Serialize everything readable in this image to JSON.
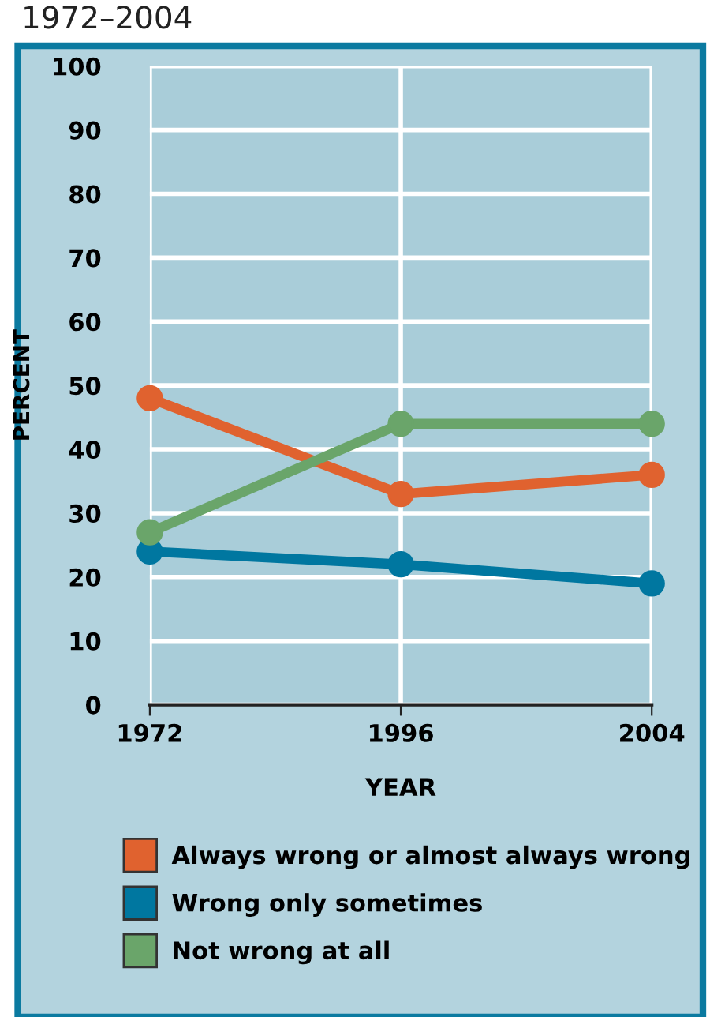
{
  "chart_data": {
    "type": "line",
    "title": "1972–2004",
    "xlabel": "YEAR",
    "ylabel": "PERCENT",
    "categories": [
      "1972",
      "1996",
      "2004"
    ],
    "series": [
      {
        "name": "Always wrong or almost always wrong",
        "color": "#e0622f",
        "values": [
          48,
          33,
          36
        ]
      },
      {
        "name": "Wrong only sometimes",
        "color": "#0077a0",
        "values": [
          24,
          22,
          19
        ]
      },
      {
        "name": "Not wrong at all",
        "color": "#6aa56a",
        "values": [
          27,
          44,
          44
        ]
      }
    ],
    "ylim": [
      0,
      100
    ],
    "yticks": [
      0,
      10,
      20,
      30,
      40,
      50,
      60,
      70,
      80,
      90,
      100
    ],
    "grid": true,
    "legend": "bottom",
    "marker": "circle",
    "line_style": "solid"
  }
}
